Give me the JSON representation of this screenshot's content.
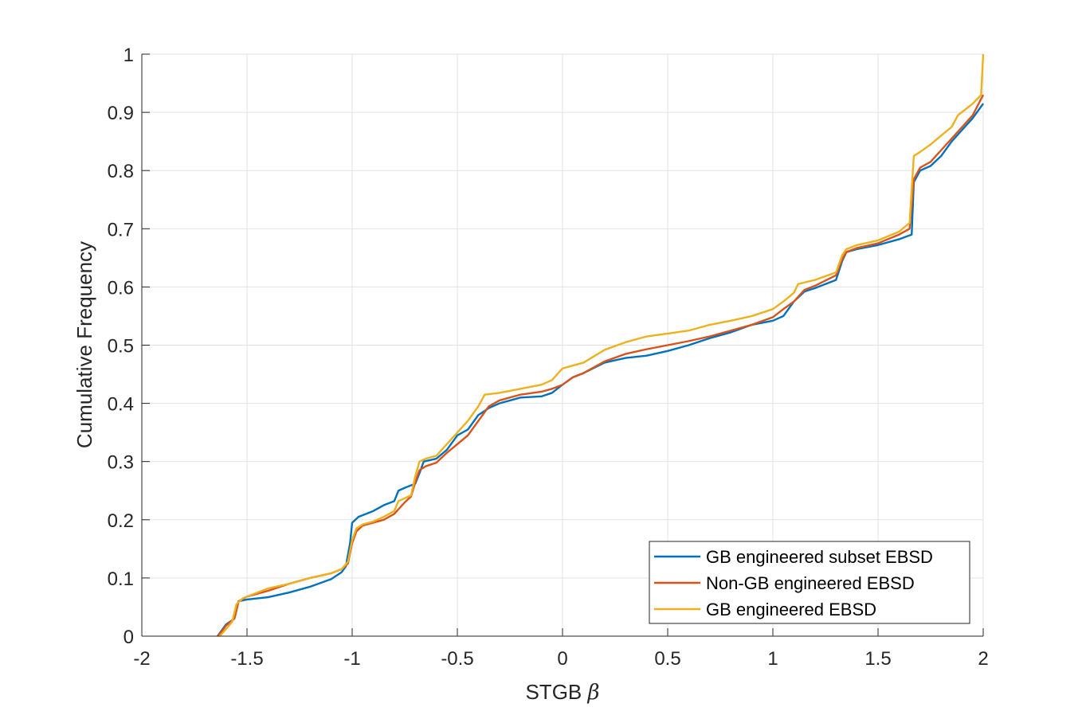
{
  "chart_data": {
    "type": "line",
    "title": "",
    "xlabel": "STGB",
    "xlabel_symbol": "β",
    "ylabel": "Cumulative Frequency",
    "xlim": [
      -2,
      2
    ],
    "ylim": [
      0,
      1
    ],
    "xticks": [
      -2,
      -1.5,
      -1,
      -0.5,
      0,
      0.5,
      1,
      1.5,
      2
    ],
    "xtick_labels": [
      "-2",
      "-1.5",
      "-1",
      "-0.5",
      "0",
      "0.5",
      "1",
      "1.5",
      "2"
    ],
    "yticks": [
      0,
      0.1,
      0.2,
      0.3,
      0.4,
      0.5,
      0.6,
      0.7,
      0.8,
      0.9,
      1
    ],
    "ytick_labels": [
      "0",
      "0.1",
      "0.2",
      "0.3",
      "0.4",
      "0.5",
      "0.6",
      "0.7",
      "0.8",
      "0.9",
      "1"
    ],
    "grid": true,
    "legend_position": "bottom-right",
    "series": [
      {
        "name": "GB engineered subset EBSD",
        "color": "#0072BD",
        "points": [
          [
            -1.64,
            0.0
          ],
          [
            -1.62,
            0.01
          ],
          [
            -1.6,
            0.02
          ],
          [
            -1.56,
            0.03
          ],
          [
            -1.54,
            0.06
          ],
          [
            -1.5,
            0.063
          ],
          [
            -1.4,
            0.067
          ],
          [
            -1.3,
            0.075
          ],
          [
            -1.2,
            0.085
          ],
          [
            -1.1,
            0.098
          ],
          [
            -1.05,
            0.11
          ],
          [
            -1.03,
            0.12
          ],
          [
            -1.01,
            0.16
          ],
          [
            -1.0,
            0.195
          ],
          [
            -0.97,
            0.205
          ],
          [
            -0.9,
            0.215
          ],
          [
            -0.85,
            0.225
          ],
          [
            -0.8,
            0.232
          ],
          [
            -0.78,
            0.25
          ],
          [
            -0.75,
            0.255
          ],
          [
            -0.7,
            0.262
          ],
          [
            -0.68,
            0.28
          ],
          [
            -0.66,
            0.3
          ],
          [
            -0.6,
            0.305
          ],
          [
            -0.55,
            0.32
          ],
          [
            -0.5,
            0.345
          ],
          [
            -0.45,
            0.355
          ],
          [
            -0.4,
            0.38
          ],
          [
            -0.35,
            0.392
          ],
          [
            -0.3,
            0.4
          ],
          [
            -0.2,
            0.41
          ],
          [
            -0.1,
            0.412
          ],
          [
            -0.05,
            0.418
          ],
          [
            0.0,
            0.432
          ],
          [
            0.05,
            0.445
          ],
          [
            0.1,
            0.452
          ],
          [
            0.2,
            0.47
          ],
          [
            0.3,
            0.478
          ],
          [
            0.4,
            0.482
          ],
          [
            0.5,
            0.49
          ],
          [
            0.6,
            0.5
          ],
          [
            0.7,
            0.512
          ],
          [
            0.8,
            0.522
          ],
          [
            0.9,
            0.535
          ],
          [
            1.0,
            0.542
          ],
          [
            1.05,
            0.55
          ],
          [
            1.1,
            0.575
          ],
          [
            1.15,
            0.592
          ],
          [
            1.2,
            0.598
          ],
          [
            1.3,
            0.612
          ],
          [
            1.33,
            0.645
          ],
          [
            1.35,
            0.66
          ],
          [
            1.4,
            0.665
          ],
          [
            1.5,
            0.672
          ],
          [
            1.6,
            0.682
          ],
          [
            1.66,
            0.69
          ],
          [
            1.67,
            0.78
          ],
          [
            1.7,
            0.8
          ],
          [
            1.75,
            0.808
          ],
          [
            1.8,
            0.825
          ],
          [
            1.85,
            0.85
          ],
          [
            1.9,
            0.87
          ],
          [
            1.95,
            0.89
          ],
          [
            2.0,
            0.915
          ]
        ]
      },
      {
        "name": "Non-GB engineered EBSD",
        "color": "#D95319",
        "points": [
          [
            -1.64,
            0.0
          ],
          [
            -1.62,
            0.008
          ],
          [
            -1.6,
            0.018
          ],
          [
            -1.56,
            0.03
          ],
          [
            -1.54,
            0.06
          ],
          [
            -1.5,
            0.068
          ],
          [
            -1.4,
            0.078
          ],
          [
            -1.3,
            0.09
          ],
          [
            -1.2,
            0.1
          ],
          [
            -1.1,
            0.108
          ],
          [
            -1.05,
            0.115
          ],
          [
            -1.02,
            0.125
          ],
          [
            -1.0,
            0.16
          ],
          [
            -0.98,
            0.18
          ],
          [
            -0.95,
            0.19
          ],
          [
            -0.9,
            0.195
          ],
          [
            -0.85,
            0.2
          ],
          [
            -0.8,
            0.21
          ],
          [
            -0.75,
            0.23
          ],
          [
            -0.72,
            0.24
          ],
          [
            -0.7,
            0.265
          ],
          [
            -0.68,
            0.285
          ],
          [
            -0.65,
            0.292
          ],
          [
            -0.6,
            0.298
          ],
          [
            -0.55,
            0.315
          ],
          [
            -0.5,
            0.33
          ],
          [
            -0.45,
            0.345
          ],
          [
            -0.4,
            0.37
          ],
          [
            -0.35,
            0.395
          ],
          [
            -0.3,
            0.405
          ],
          [
            -0.2,
            0.415
          ],
          [
            -0.1,
            0.42
          ],
          [
            -0.05,
            0.425
          ],
          [
            0.0,
            0.432
          ],
          [
            0.05,
            0.445
          ],
          [
            0.1,
            0.452
          ],
          [
            0.2,
            0.472
          ],
          [
            0.3,
            0.485
          ],
          [
            0.4,
            0.493
          ],
          [
            0.5,
            0.5
          ],
          [
            0.6,
            0.507
          ],
          [
            0.7,
            0.515
          ],
          [
            0.8,
            0.525
          ],
          [
            0.9,
            0.535
          ],
          [
            1.0,
            0.548
          ],
          [
            1.05,
            0.562
          ],
          [
            1.1,
            0.575
          ],
          [
            1.15,
            0.595
          ],
          [
            1.2,
            0.602
          ],
          [
            1.3,
            0.62
          ],
          [
            1.33,
            0.648
          ],
          [
            1.35,
            0.66
          ],
          [
            1.4,
            0.667
          ],
          [
            1.5,
            0.675
          ],
          [
            1.6,
            0.69
          ],
          [
            1.65,
            0.7
          ],
          [
            1.67,
            0.785
          ],
          [
            1.7,
            0.805
          ],
          [
            1.75,
            0.815
          ],
          [
            1.8,
            0.835
          ],
          [
            1.85,
            0.855
          ],
          [
            1.9,
            0.875
          ],
          [
            1.95,
            0.895
          ],
          [
            2.0,
            0.93
          ]
        ]
      },
      {
        "name": "GB engineered EBSD",
        "color": "#EDB120",
        "points": [
          [
            -1.63,
            0.0
          ],
          [
            -1.6,
            0.012
          ],
          [
            -1.57,
            0.025
          ],
          [
            -1.55,
            0.055
          ],
          [
            -1.52,
            0.065
          ],
          [
            -1.45,
            0.075
          ],
          [
            -1.4,
            0.082
          ],
          [
            -1.3,
            0.09
          ],
          [
            -1.2,
            0.1
          ],
          [
            -1.1,
            0.108
          ],
          [
            -1.05,
            0.115
          ],
          [
            -1.02,
            0.128
          ],
          [
            -1.0,
            0.165
          ],
          [
            -0.98,
            0.185
          ],
          [
            -0.95,
            0.192
          ],
          [
            -0.9,
            0.197
          ],
          [
            -0.85,
            0.205
          ],
          [
            -0.8,
            0.215
          ],
          [
            -0.78,
            0.232
          ],
          [
            -0.72,
            0.242
          ],
          [
            -0.7,
            0.275
          ],
          [
            -0.68,
            0.3
          ],
          [
            -0.65,
            0.305
          ],
          [
            -0.6,
            0.31
          ],
          [
            -0.55,
            0.33
          ],
          [
            -0.5,
            0.35
          ],
          [
            -0.45,
            0.37
          ],
          [
            -0.4,
            0.395
          ],
          [
            -0.37,
            0.415
          ],
          [
            -0.3,
            0.418
          ],
          [
            -0.2,
            0.425
          ],
          [
            -0.1,
            0.432
          ],
          [
            -0.05,
            0.44
          ],
          [
            0.0,
            0.46
          ],
          [
            0.05,
            0.465
          ],
          [
            0.1,
            0.47
          ],
          [
            0.2,
            0.492
          ],
          [
            0.3,
            0.505
          ],
          [
            0.4,
            0.515
          ],
          [
            0.5,
            0.52
          ],
          [
            0.6,
            0.525
          ],
          [
            0.7,
            0.535
          ],
          [
            0.8,
            0.542
          ],
          [
            0.9,
            0.55
          ],
          [
            1.0,
            0.562
          ],
          [
            1.05,
            0.575
          ],
          [
            1.1,
            0.59
          ],
          [
            1.12,
            0.605
          ],
          [
            1.2,
            0.612
          ],
          [
            1.3,
            0.625
          ],
          [
            1.33,
            0.655
          ],
          [
            1.35,
            0.665
          ],
          [
            1.4,
            0.672
          ],
          [
            1.5,
            0.68
          ],
          [
            1.6,
            0.695
          ],
          [
            1.65,
            0.71
          ],
          [
            1.67,
            0.825
          ],
          [
            1.7,
            0.832
          ],
          [
            1.75,
            0.845
          ],
          [
            1.8,
            0.86
          ],
          [
            1.85,
            0.875
          ],
          [
            1.88,
            0.895
          ],
          [
            1.95,
            0.915
          ],
          [
            1.99,
            0.93
          ],
          [
            2.0,
            1.0
          ]
        ]
      }
    ]
  }
}
